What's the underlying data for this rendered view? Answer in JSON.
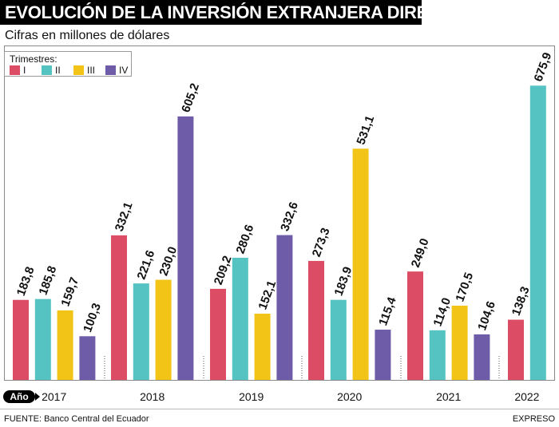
{
  "header": {
    "title": "EVOLUCIÓN DE LA INVERSIÓN EXTRANJERA DIRECTA"
  },
  "subtitle": "Cifras en millones de dólares",
  "legend": {
    "title": "Trimestres:",
    "items": [
      "I",
      "II",
      "III",
      "IV"
    ]
  },
  "axis": {
    "year_label": "Año"
  },
  "footer": {
    "source": "FUENTE: Banco Central del Ecuador",
    "brand": "EXPRESO"
  },
  "colors": {
    "q1": "#dc4c64",
    "q2": "#55c3c1",
    "q3": "#f2c417",
    "q4": "#6e5ca8"
  },
  "chart_data": {
    "type": "bar",
    "title": "EVOLUCIÓN DE LA INVERSIÓN EXTRANJERA DIRECTA",
    "ylabel": "Cifras en millones de dólares",
    "ylim": [
      0,
      700
    ],
    "categories": [
      "2017",
      "2018",
      "2019",
      "2020",
      "2021",
      "2022"
    ],
    "series": [
      {
        "name": "I",
        "values": [
          183.8,
          332.1,
          209.2,
          273.3,
          249.0,
          138.3
        ],
        "labels": [
          "183,8",
          "332,1",
          "209,2",
          "273,3",
          "249,0",
          "138,3"
        ]
      },
      {
        "name": "II",
        "values": [
          185.8,
          221.6,
          280.6,
          183.9,
          114.0,
          675.9
        ],
        "labels": [
          "185,8",
          "221,6",
          "280,6",
          "183,9",
          "114,0",
          "675,9"
        ]
      },
      {
        "name": "III",
        "values": [
          159.7,
          230.0,
          152.1,
          531.1,
          170.5,
          null
        ],
        "labels": [
          "159,7",
          "230,0",
          "152,1",
          "531,1",
          "170,5",
          null
        ]
      },
      {
        "name": "IV",
        "values": [
          100.3,
          605.2,
          332.6,
          115.4,
          104.6,
          null
        ],
        "labels": [
          "100,3",
          "605,2",
          "332,6",
          "115,4",
          "104,6",
          null
        ]
      }
    ]
  }
}
